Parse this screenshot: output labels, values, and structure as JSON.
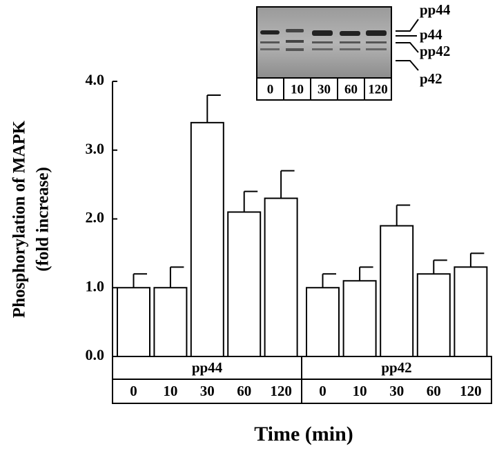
{
  "chart_data": {
    "type": "bar",
    "ylabel": [
      "Phosphorylation of MAPK",
      "(fold increase)"
    ],
    "xlabel": "Time (min)",
    "ylim": [
      0,
      4
    ],
    "yticks": [
      {
        "value": 0,
        "label": "0.0"
      },
      {
        "value": 1,
        "label": "1.0"
      },
      {
        "value": 2,
        "label": "2.0"
      },
      {
        "value": 3,
        "label": "3.0"
      },
      {
        "value": 4,
        "label": "4.0"
      }
    ],
    "color": "#ffffff",
    "groups": [
      {
        "name": "pp44",
        "categories": [
          "0",
          "10",
          "30",
          "60",
          "120"
        ],
        "values": [
          1.0,
          1.0,
          3.4,
          2.1,
          2.3
        ],
        "errors": [
          0.2,
          0.3,
          0.4,
          0.3,
          0.4
        ]
      },
      {
        "name": "pp42",
        "categories": [
          "0",
          "10",
          "30",
          "60",
          "120"
        ],
        "values": [
          1.0,
          1.1,
          1.9,
          1.2,
          1.3
        ],
        "errors": [
          0.2,
          0.2,
          0.3,
          0.2,
          0.2
        ]
      }
    ],
    "inset": {
      "lanes": [
        "0",
        "10",
        "30",
        "60",
        "120"
      ],
      "bands": [
        "pp44",
        "p44",
        "pp42",
        "p42"
      ]
    }
  }
}
